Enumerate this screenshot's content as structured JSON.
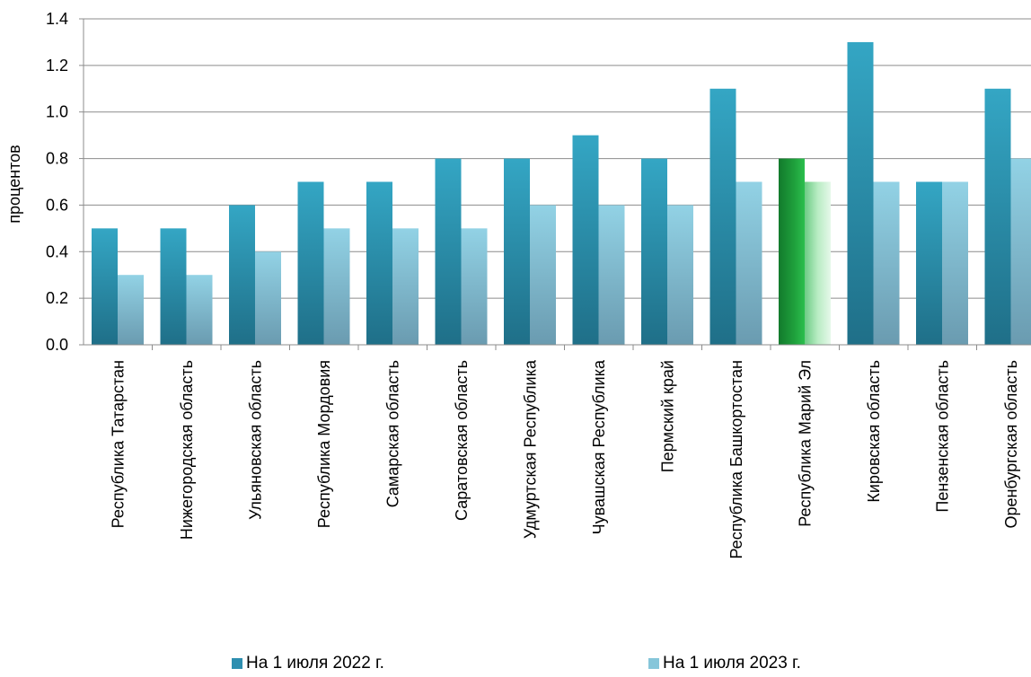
{
  "chart_data": {
    "type": "bar",
    "ylabel": "процентов",
    "ylim": [
      0,
      1.4
    ],
    "yticks": [
      "0.0",
      "0.2",
      "0.4",
      "0.6",
      "0.8",
      "1.0",
      "1.2",
      "1.4"
    ],
    "grid": true,
    "legend_position": "bottom",
    "categories": [
      "Республика Татарстан",
      "Нижегородская область",
      "Ульяновская область",
      "Республика Мордовия",
      "Самарская область",
      "Саратовская область",
      "Удмуртская Республика",
      "Чувашская Республика",
      "Пермский край",
      "Республика Башкортостан",
      "Республика Марий Эл",
      "Кировская область",
      "Пензенская область",
      "Оренбургская область"
    ],
    "highlight_category": "Республика Марий Эл",
    "series": [
      {
        "name": "На 1 июля 2022 г.",
        "color": "#2e9bbb",
        "highlight_color": "#1fa03c",
        "values": [
          0.5,
          0.5,
          0.6,
          0.7,
          0.7,
          0.8,
          0.8,
          0.9,
          0.8,
          1.1,
          0.8,
          1.3,
          0.7,
          1.1
        ]
      },
      {
        "name": "На 1 июля 2023 г.",
        "color": "#8ccde0",
        "highlight_color": "#a6e0b0",
        "values": [
          0.3,
          0.3,
          0.4,
          0.5,
          0.5,
          0.5,
          0.6,
          0.6,
          0.6,
          0.7,
          0.7,
          0.7,
          0.7,
          0.8
        ]
      }
    ]
  },
  "legend": {
    "items": [
      {
        "label": "На 1 июля 2022 г.",
        "color": "#2e9bbb"
      },
      {
        "label": "На 1 июля 2023 г.",
        "color": "#8ccde0"
      }
    ]
  }
}
